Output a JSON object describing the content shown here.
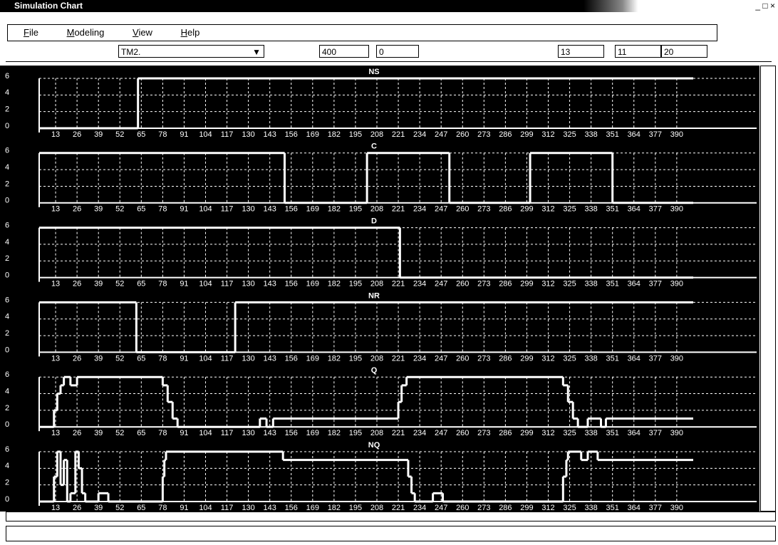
{
  "window": {
    "title": "Simulation Chart"
  },
  "menu": [
    "File",
    "Modeling",
    "View",
    "Help"
  ],
  "toolbar": {
    "model": "TM2.",
    "fields": [
      "400",
      "0",
      "13",
      "11",
      "20"
    ]
  },
  "chart_data": [
    {
      "type": "step",
      "title": "NS",
      "x": [
        0,
        63
      ],
      "values": [
        0,
        6
      ],
      "xlim": [
        0,
        400
      ],
      "ylim": [
        0,
        6
      ],
      "yticks": [
        0,
        2,
        4,
        6
      ],
      "xticks": [
        13,
        26,
        39,
        52,
        65,
        78,
        91,
        104,
        117,
        130,
        143,
        156,
        169,
        182,
        195,
        208,
        221,
        234,
        247,
        260,
        273,
        286,
        299,
        312,
        325,
        338,
        351,
        364,
        377,
        390
      ],
      "grid": true,
      "color": "#ffffff"
    },
    {
      "type": "step",
      "title": "C",
      "x": [
        0,
        152,
        202,
        252,
        301,
        351
      ],
      "values": [
        6,
        0,
        6,
        0,
        6,
        0
      ],
      "xlim": [
        0,
        400
      ],
      "ylim": [
        0,
        6
      ],
      "yticks": [
        0,
        2,
        4,
        6
      ],
      "xticks": [
        13,
        26,
        39,
        52,
        65,
        78,
        91,
        104,
        117,
        130,
        143,
        156,
        169,
        182,
        195,
        208,
        221,
        234,
        247,
        260,
        273,
        286,
        299,
        312,
        325,
        338,
        351,
        364,
        377,
        390
      ],
      "grid": true,
      "color": "#ffffff"
    },
    {
      "type": "step",
      "title": "D",
      "x": [
        0,
        222
      ],
      "values": [
        6,
        0
      ],
      "xlim": [
        0,
        400
      ],
      "ylim": [
        0,
        6
      ],
      "yticks": [
        0,
        2,
        4,
        6
      ],
      "xticks": [
        13,
        26,
        39,
        52,
        65,
        78,
        91,
        104,
        117,
        130,
        143,
        156,
        169,
        182,
        195,
        208,
        221,
        234,
        247,
        260,
        273,
        286,
        299,
        312,
        325,
        338,
        351,
        364,
        377,
        390
      ],
      "grid": true,
      "color": "#ffffff"
    },
    {
      "type": "step",
      "title": "NR",
      "x": [
        0,
        62,
        122
      ],
      "values": [
        6,
        0,
        6
      ],
      "xlim": [
        0,
        400
      ],
      "ylim": [
        0,
        6
      ],
      "yticks": [
        0,
        2,
        4,
        6
      ],
      "xticks": [
        13,
        26,
        39,
        52,
        65,
        78,
        91,
        104,
        117,
        130,
        143,
        156,
        169,
        182,
        195,
        208,
        221,
        234,
        247,
        260,
        273,
        286,
        299,
        312,
        325,
        338,
        351,
        364,
        377,
        390
      ],
      "grid": true,
      "color": "#ffffff"
    },
    {
      "type": "step",
      "title": "Q",
      "x": [
        0,
        12,
        14,
        16,
        18,
        22,
        26,
        78,
        81,
        84,
        87,
        137,
        141,
        145,
        221,
        223,
        226,
        321,
        324,
        327,
        330,
        336,
        344,
        347
      ],
      "values": [
        0,
        2,
        4,
        5,
        6,
        5,
        6,
        5,
        3,
        1,
        0,
        1,
        0,
        1,
        3,
        5,
        6,
        5,
        3,
        1,
        0,
        1,
        0,
        1
      ],
      "xlim": [
        0,
        400
      ],
      "ylim": [
        0,
        6
      ],
      "yticks": [
        0,
        2,
        4,
        6
      ],
      "xticks": [
        13,
        26,
        39,
        52,
        65,
        78,
        91,
        104,
        117,
        130,
        143,
        156,
        169,
        182,
        195,
        208,
        221,
        234,
        247,
        260,
        273,
        286,
        299,
        312,
        325,
        338,
        351,
        364,
        377,
        390
      ],
      "grid": true,
      "color": "#ffffff"
    },
    {
      "type": "step",
      "title": "NQ",
      "x": [
        0,
        12,
        14,
        16,
        18,
        20,
        22,
        25,
        27,
        29,
        31,
        39,
        45,
        78,
        79,
        80,
        151,
        227,
        229,
        231,
        242,
        248,
        321,
        323,
        324,
        332,
        336,
        342
      ],
      "values": [
        0,
        3,
        6,
        2,
        5,
        0,
        1,
        6,
        4,
        1,
        0,
        1,
        0,
        3,
        5,
        6,
        5,
        3,
        1,
        0,
        1,
        0,
        3,
        5,
        6,
        5,
        6,
        5
      ],
      "xlim": [
        0,
        400
      ],
      "ylim": [
        0,
        6
      ],
      "yticks": [
        0,
        2,
        4,
        6
      ],
      "xticks": [
        13,
        26,
        39,
        52,
        65,
        78,
        91,
        104,
        117,
        130,
        143,
        156,
        169,
        182,
        195,
        208,
        221,
        234,
        247,
        260,
        273,
        286,
        299,
        312,
        325,
        338,
        351,
        364,
        377,
        390
      ],
      "grid": true,
      "color": "#ffffff"
    }
  ]
}
